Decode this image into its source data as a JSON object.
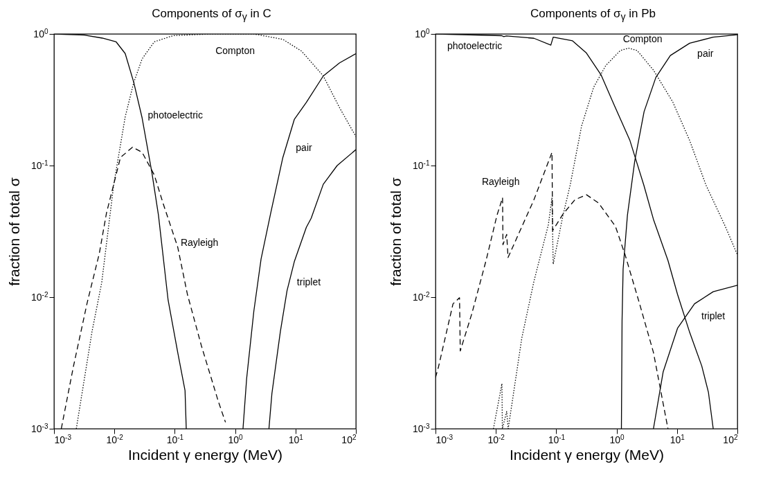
{
  "chart_data": [
    {
      "type": "line",
      "title": "Components of σ$_{γ}$ in C",
      "xlabel": "Incident γ energy (MeV)",
      "ylabel": "fraction of total σ",
      "log": "xy",
      "xlim": [
        0.001,
        100
      ],
      "ylim": [
        0.001,
        1
      ],
      "xticks": [
        {
          "value": 0.001,
          "label": "10$^{-3}$"
        },
        {
          "value": 0.01,
          "label": "10$^{-2}$"
        },
        {
          "value": 0.1,
          "label": "10$^{-1}$"
        },
        {
          "value": 1,
          "label": "10$^{0}$"
        },
        {
          "value": 10,
          "label": "10$^{1}$"
        },
        {
          "value": 100,
          "label": "10$^{2}$"
        }
      ],
      "yticks": [
        {
          "value": 0.001,
          "label": "10$^{-3}$"
        },
        {
          "value": 0.01,
          "label": "10$^{-2}$"
        },
        {
          "value": 0.1,
          "label": "10$^{-1}$"
        },
        {
          "value": 1,
          "label": "10$^{0}$"
        }
      ],
      "series": [
        {
          "name": "photoelectric",
          "color": "#000000",
          "line_style": "solid",
          "x": [
            0.001,
            0.00316,
            0.0063,
            0.0107,
            0.0151,
            0.0209,
            0.0288,
            0.0417,
            0.0537,
            0.0776,
            0.112,
            0.148,
            0.155
          ],
          "values": [
            1.0,
            0.98,
            0.93,
            0.87,
            0.71,
            0.43,
            0.23,
            0.089,
            0.042,
            0.0095,
            0.0038,
            0.00195,
            0.001
          ]
        },
        {
          "name": "Compton",
          "color": "#000000",
          "line_style": "dotted",
          "x": [
            0.00234,
            0.00427,
            0.00617,
            0.00977,
            0.0151,
            0.0209,
            0.0288,
            0.0457,
            0.0933,
            0.398,
            2.04,
            6.17,
            12.6,
            28.8,
            53.7,
            100
          ],
          "values": [
            0.001,
            0.0055,
            0.0129,
            0.072,
            0.234,
            0.427,
            0.646,
            0.871,
            0.97,
            1.0,
            1.0,
            0.91,
            0.74,
            0.48,
            0.275,
            0.166
          ]
        },
        {
          "name": "Rayleigh",
          "color": "#000000",
          "line_style": "dashed",
          "x": [
            0.00132,
            0.00209,
            0.00355,
            0.00562,
            0.00741,
            0.0126,
            0.02,
            0.0288,
            0.0457,
            0.0646,
            0.112,
            0.162,
            0.275,
            0.525,
            0.692
          ],
          "values": [
            0.001,
            0.00295,
            0.0091,
            0.0214,
            0.0437,
            0.115,
            0.138,
            0.126,
            0.085,
            0.051,
            0.024,
            0.0105,
            0.0043,
            0.00162,
            0.00112
          ]
        },
        {
          "name": "pair",
          "color": "#000000",
          "line_style": "solid",
          "x": [
            1.35,
            1.55,
            2.04,
            2.69,
            3.89,
            6.17,
            9.55,
            15.1,
            28.8,
            53.7,
            100
          ],
          "values": [
            0.001,
            0.0024,
            0.0078,
            0.0195,
            0.0437,
            0.115,
            0.224,
            0.302,
            0.479,
            0.603,
            0.708
          ]
        },
        {
          "name": "triplet",
          "color": "#000000",
          "line_style": "solid",
          "x": [
            3.63,
            4.07,
            5.62,
            7.24,
            9.55,
            15.1,
            18.2,
            28.8,
            49,
            100
          ],
          "values": [
            0.001,
            0.00186,
            0.0055,
            0.0112,
            0.0186,
            0.0339,
            0.0398,
            0.072,
            0.1,
            0.132
          ]
        }
      ]
    },
    {
      "type": "line",
      "title": "Components of σ$_{γ}$ in Pb",
      "xlabel": "Incident γ energy (MeV)",
      "ylabel": "fraction of total σ",
      "log": "xy",
      "xlim": [
        0.001,
        100
      ],
      "ylim": [
        0.001,
        1
      ],
      "xticks": [
        {
          "value": 0.001,
          "label": "10$^{-3}$"
        },
        {
          "value": 0.01,
          "label": "10$^{-2}$"
        },
        {
          "value": 0.1,
          "label": "10$^{-1}$"
        },
        {
          "value": 1,
          "label": "10$^{0}$"
        },
        {
          "value": 10,
          "label": "10$^{1}$"
        },
        {
          "value": 100,
          "label": "10$^{2}$"
        }
      ],
      "yticks": [
        {
          "value": 0.001,
          "label": "10$^{-3}$"
        },
        {
          "value": 0.01,
          "label": "10$^{-2}$"
        },
        {
          "value": 0.1,
          "label": "10$^{-1}$"
        },
        {
          "value": 1,
          "label": "10$^{0}$"
        }
      ],
      "series": [
        {
          "name": "photoelectric",
          "color": "#000000",
          "line_style": "solid",
          "x": [
            0.001,
            0.0125,
            0.0135,
            0.015,
            0.0427,
            0.0813,
            0.089,
            0.186,
            0.316,
            0.55,
            0.912,
            1.66,
            2.82,
            4.07,
            7.08,
            10.2,
            16.2,
            25.7,
            33.1,
            39.8
          ],
          "values": [
            1.0,
            0.97,
            0.955,
            0.965,
            0.927,
            0.822,
            0.946,
            0.887,
            0.716,
            0.49,
            0.288,
            0.155,
            0.071,
            0.039,
            0.019,
            0.0105,
            0.0054,
            0.003,
            0.0019,
            0.001
          ]
        },
        {
          "name": "Compton",
          "color": "#000000",
          "line_style": "dotted",
          "x": [
            0.0091,
            0.0126,
            0.0128,
            0.0151,
            0.016,
            0.0269,
            0.0427,
            0.074,
            0.085,
            0.089,
            0.129,
            0.17,
            0.263,
            0.417,
            0.66,
            1.15,
            1.58,
            2.19,
            4.07,
            8.51,
            16.2,
            30.2,
            63,
            100
          ],
          "values": [
            0.001,
            0.0022,
            0.001,
            0.00135,
            0.001,
            0.0049,
            0.0132,
            0.0355,
            0.057,
            0.0178,
            0.0417,
            0.071,
            0.2,
            0.394,
            0.575,
            0.748,
            0.78,
            0.748,
            0.531,
            0.304,
            0.155,
            0.071,
            0.0345,
            0.021
          ]
        },
        {
          "name": "Rayleigh",
          "color": "#000000",
          "line_style": "dashed",
          "x": [
            0.001,
            0.00112,
            0.00195,
            0.0025,
            0.00257,
            0.004,
            0.0069,
            0.0104,
            0.0129,
            0.0131,
            0.0151,
            0.0159,
            0.0427,
            0.085,
            0.087,
            0.129,
            0.204,
            0.316,
            0.5,
            0.955,
            1.38,
            2.4,
            4.07,
            7.08
          ],
          "values": [
            0.00245,
            0.00295,
            0.0089,
            0.0099,
            0.0039,
            0.0075,
            0.0191,
            0.0417,
            0.057,
            0.025,
            0.03,
            0.02,
            0.055,
            0.126,
            0.032,
            0.0427,
            0.055,
            0.06,
            0.052,
            0.0345,
            0.021,
            0.0089,
            0.0038,
            0.001
          ]
        },
        {
          "name": "pair",
          "color": "#000000",
          "line_style": "solid",
          "x": [
            1.2,
            1.23,
            1.28,
            1.51,
            2.0,
            2.85,
            4.47,
            7.76,
            16.2,
            39.8,
            100
          ],
          "values": [
            0.001,
            0.0066,
            0.0163,
            0.042,
            0.109,
            0.257,
            0.468,
            0.686,
            0.85,
            0.946,
            0.987
          ]
        },
        {
          "name": "triplet",
          "color": "#000000",
          "line_style": "solid",
          "x": [
            4.07,
            5.89,
            10.2,
            19.5,
            39.8,
            100
          ],
          "values": [
            0.001,
            0.0027,
            0.0058,
            0.0089,
            0.011,
            0.0123
          ]
        }
      ]
    }
  ]
}
